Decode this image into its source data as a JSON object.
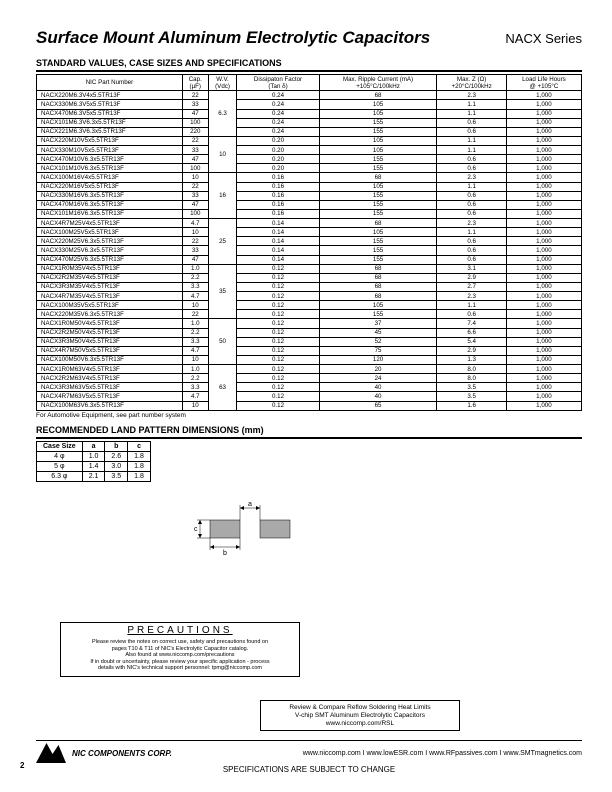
{
  "header": {
    "title": "Surface Mount Aluminum Electrolytic Capacitors",
    "series": "NACX Series"
  },
  "section1_title": "STANDARD VALUES, CASE SIZES AND SPECIFICATIONS",
  "main_table": {
    "headers": [
      "NIC Part Number",
      "Cap.\n(µF)",
      "W.V.\n(Vdc)",
      "Dissipaton Factor\n(Tan δ)",
      "Max. Ripple Current (mA)\n+105°C/100kHz",
      "Max. Z (Ω)\n+20°C/100kHz",
      "Load Life Hours\n@ +105°C"
    ],
    "groups": [
      {
        "wv": "6.3",
        "rows": [
          [
            "NACX220M6.3V4x5.5TR13F",
            "22",
            "0.24",
            "68",
            "2.3",
            "1,000"
          ],
          [
            "NACX330M6.3V5x5.5TR13F",
            "33",
            "0.24",
            "105",
            "1.1",
            "1,000"
          ],
          [
            "NACX470M6.3V5x5.5TR13F",
            "47",
            "0.24",
            "105",
            "1.1",
            "1,000"
          ],
          [
            "NACX101M6.3V6.3x5.5TR13F",
            "100",
            "0.24",
            "155",
            "0.6",
            "1,000"
          ],
          [
            "NACX221M6.3V6.3x5.5TR13F",
            "220",
            "0.24",
            "155",
            "0.6",
            "1,000"
          ]
        ]
      },
      {
        "wv": "10",
        "rows": [
          [
            "NACX220M10V5x5.5TR13F",
            "22",
            "0.20",
            "105",
            "1.1",
            "1,000"
          ],
          [
            "NACX330M10V5x5.5TR13F",
            "33",
            "0.20",
            "105",
            "1.1",
            "1,000"
          ],
          [
            "NACX470M10V6.3x5.5TR13F",
            "47",
            "0.20",
            "155",
            "0.6",
            "1,000"
          ],
          [
            "NACX101M10V6.3x5.5TR13F",
            "100",
            "0.20",
            "155",
            "0.6",
            "1,000"
          ]
        ]
      },
      {
        "wv": "16",
        "rows": [
          [
            "NACX100M16V4x5.5TR13F",
            "10",
            "0.16",
            "68",
            "2.3",
            "1,000"
          ],
          [
            "NACX220M16V5x5.5TR13F",
            "22",
            "0.16",
            "105",
            "1.1",
            "1,000"
          ],
          [
            "NACX330M16V6.3x5.5TR13F",
            "33",
            "0.16",
            "155",
            "0.6",
            "1,000"
          ],
          [
            "NACX470M16V6.3x5.5TR13F",
            "47",
            "0.16",
            "155",
            "0.6",
            "1,000"
          ],
          [
            "NACX101M16V6.3x5.5TR13F",
            "100",
            "0.16",
            "155",
            "0.6",
            "1,000"
          ]
        ]
      },
      {
        "wv": "25",
        "rows": [
          [
            "NACX4R7M25V4x5.5TR13F",
            "4.7",
            "0.14",
            "68",
            "2.3",
            "1,000"
          ],
          [
            "NACX100M25V5x5.5TR13F",
            "10",
            "0.14",
            "105",
            "1.1",
            "1,000"
          ],
          [
            "NACX220M25V6.3x5.5TR13F",
            "22",
            "0.14",
            "155",
            "0.6",
            "1,000"
          ],
          [
            "NACX330M25V6.3x5.5TR13F",
            "33",
            "0.14",
            "155",
            "0.6",
            "1,000"
          ],
          [
            "NACX470M25V6.3x5.5TR13F",
            "47",
            "0.14",
            "155",
            "0.6",
            "1,000"
          ]
        ]
      },
      {
        "wv": "35",
        "rows": [
          [
            "NACX1R0M35V4x5.5TR13F",
            "1.0",
            "0.12",
            "68",
            "3.1",
            "1,000"
          ],
          [
            "NACX2R2M35V4x5.5TR13F",
            "2.2",
            "0.12",
            "68",
            "2.9",
            "1,000"
          ],
          [
            "NACX3R3M35V4x5.5TR13F",
            "3.3",
            "0.12",
            "68",
            "2.7",
            "1,000"
          ],
          [
            "NACX4R7M35V4x5.5TR13F",
            "4.7",
            "0.12",
            "68",
            "2.3",
            "1,000"
          ],
          [
            "NACX100M35V5x5.5TR13F",
            "10",
            "0.12",
            "105",
            "1.1",
            "1,000"
          ],
          [
            "NACX220M35V6.3x5.5TR13F",
            "22",
            "0.12",
            "155",
            "0.6",
            "1,000"
          ]
        ]
      },
      {
        "wv": "50",
        "rows": [
          [
            "NACX1R0M50V4x5.5TR13F",
            "1.0",
            "0.12",
            "37",
            "7.4",
            "1,000"
          ],
          [
            "NACX2R2M50V4x5.5TR13F",
            "2.2",
            "0.12",
            "45",
            "6.6",
            "1,000"
          ],
          [
            "NACX3R3M50V4x5.5TR13F",
            "3.3",
            "0.12",
            "52",
            "5.4",
            "1,000"
          ],
          [
            "NACX4R7M50V5x5.5TR13F",
            "4.7",
            "0.12",
            "75",
            "2.9",
            "1,000"
          ],
          [
            "NACX100M50V6.3x5.5TR13F",
            "10",
            "0.12",
            "120",
            "1.3",
            "1,000"
          ]
        ]
      },
      {
        "wv": "63",
        "rows": [
          [
            "NACX1R0M63V4x5.5TR13F",
            "1.0",
            "0.12",
            "20",
            "8.0",
            "1,000"
          ],
          [
            "NACX2R2M63V4x5.5TR13F",
            "2.2",
            "0.12",
            "24",
            "8.0",
            "1,000"
          ],
          [
            "NACX3R3M63V5x5.5TR13F",
            "3.3",
            "0.12",
            "40",
            "3.5",
            "1,000"
          ],
          [
            "NACX4R7M63V5x5.5TR13F",
            "4.7",
            "0.12",
            "40",
            "3.5",
            "1,000"
          ],
          [
            "NACX100M63V6.3x5.5TR13F",
            "10",
            "0.12",
            "65",
            "1.6",
            "1,000"
          ]
        ]
      }
    ]
  },
  "footnote": "For Automotive Equipment, see part number system",
  "section2_title": "RECOMMENDED LAND PATTERN DIMENSIONS (mm)",
  "land_table": {
    "headers": [
      "Case Size",
      "a",
      "b",
      "c"
    ],
    "rows": [
      [
        "4 φ",
        "1.0",
        "2.6",
        "1.8"
      ],
      [
        "5 φ",
        "1.4",
        "3.0",
        "1.8"
      ],
      [
        "6.3 φ",
        "2.1",
        "3.5",
        "1.8"
      ]
    ]
  },
  "precautions": {
    "title": "PRECAUTIONS",
    "lines": [
      "Please review the notes on correct use, safety and precautions found on",
      "pages T10 & T11 of NIC's Electrolytic Capacitor catalog.",
      "Also found at www.niccomp.com/precautions",
      "If in doubt or uncertainty, please review your specific application - process",
      "details with NIC's technical support personnel: tpmg@niccomp.com"
    ]
  },
  "review_box": {
    "lines": [
      "Review & Compare Reflow Soldering Heat Limits",
      "V-chip SMT Aluminum Electrolytic Capacitors",
      "www.niccomp.com/RSL"
    ]
  },
  "footer": {
    "corp": "NIC COMPONENTS CORP.",
    "urls": "www.niccomp.com   I www.lowESR.com   I www.RFpassives.com   I www.SMTmagnetics.com",
    "spec_change": "SPECIFICATIONS ARE SUBJECT TO CHANGE",
    "page": "2"
  },
  "diagram_labels": {
    "a": "a",
    "b": "b",
    "c": "c"
  }
}
